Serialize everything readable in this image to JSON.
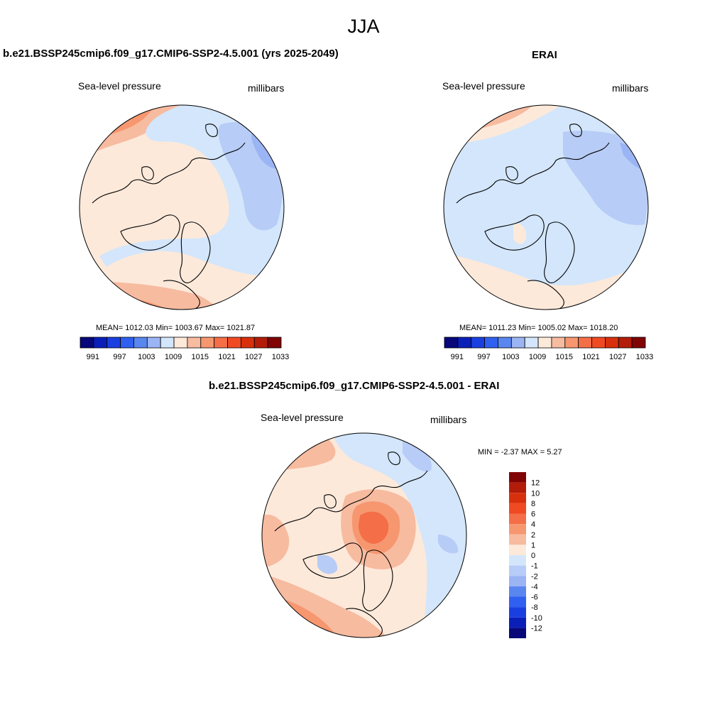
{
  "main_title": "JJA",
  "panels": [
    {
      "title": "b.e21.BSSP245cmip6.f09_g17.CMIP6-SSP2-4.5.001 (yrs 2025-2049)",
      "left_label": "Sea-level pressure",
      "right_label": "millibars",
      "stats": "MEAN= 1012.03   Min= 1003.67   Max= 1021.87",
      "colorbar_ticks": [
        "991",
        "997",
        "1003",
        "1009",
        "1015",
        "1021",
        "1027",
        "1033"
      ]
    },
    {
      "title": "ERAI",
      "left_label": "Sea-level pressure",
      "right_label": "millibars",
      "stats": "MEAN= 1011.23   Min= 1005.02   Max= 1018.20",
      "colorbar_ticks": [
        "991",
        "997",
        "1003",
        "1009",
        "1015",
        "1021",
        "1027",
        "1033"
      ]
    },
    {
      "title": "b.e21.BSSP245cmip6.f09_g17.CMIP6-SSP2-4.5.001 - ERAI",
      "left_label": "Sea-level pressure",
      "right_label": "millibars",
      "stats": "MIN =  -2.37 MAX =   5.27",
      "colorbar_ticks": [
        "12",
        "10",
        "8",
        "6",
        "4",
        "2",
        "1",
        "0",
        "-1",
        "-2",
        "-4",
        "-6",
        "-8",
        "-10",
        "-12"
      ]
    }
  ],
  "colors": {
    "abs_scale": [
      "#08087a",
      "#0a1fb8",
      "#1a3fe0",
      "#3060f0",
      "#5a86f0",
      "#9ab4f4",
      "#d3e6fb",
      "#fde9da",
      "#f7bba0",
      "#f69770",
      "#f46e48",
      "#f04a22",
      "#d8300c",
      "#b21c08",
      "#800404"
    ],
    "diff_scale_top_to_bottom": [
      "#800404",
      "#b21c08",
      "#d8300c",
      "#f04a22",
      "#f46e48",
      "#f69770",
      "#f7bba0",
      "#fde9da",
      "#d3e6fb",
      "#b7ccf6",
      "#9ab4f4",
      "#5a86f0",
      "#3060f0",
      "#1a3fe0",
      "#0a1fb8",
      "#08087a"
    ]
  }
}
